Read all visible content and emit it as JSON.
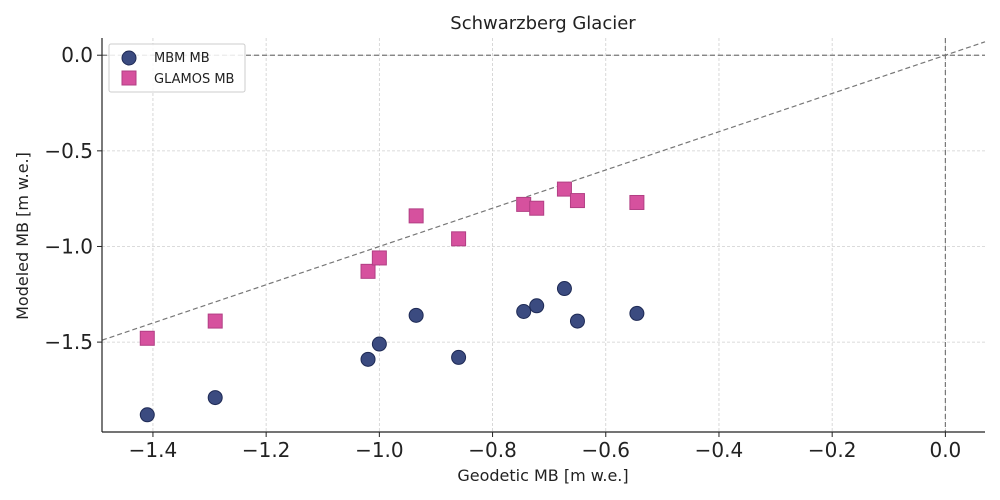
{
  "chart_data": {
    "type": "scatter",
    "title": "Schwarzberg Glacier",
    "xlabel": "Geodetic MB [m w.e.]",
    "ylabel": "Modeled MB [m w.e.]",
    "xlim": [
      -1.49,
      0.07
    ],
    "ylim": [
      -1.97,
      0.09
    ],
    "x_ticks": [
      -1.4,
      -1.2,
      -1.0,
      -0.8,
      -0.6,
      -0.4,
      -0.2,
      0.0
    ],
    "x_tick_labels": [
      "−1.4",
      "−1.2",
      "−1.0",
      "−0.8",
      "−0.6",
      "−0.4",
      "−0.2",
      "0.0"
    ],
    "y_ticks": [
      0.0,
      -0.5,
      -1.0,
      -1.5
    ],
    "y_tick_labels": [
      "0.0",
      "−0.5",
      "−1.0",
      "−1.5"
    ],
    "grid": true,
    "legend_position": "top-left",
    "reference_lines": [
      "y=x",
      "x=0",
      "y=0"
    ],
    "series": [
      {
        "name": "MBM MB",
        "marker": "circle",
        "color": "#3b4b80",
        "points": [
          {
            "x": -1.41,
            "y": -1.88
          },
          {
            "x": -1.29,
            "y": -1.79
          },
          {
            "x": -1.02,
            "y": -1.59
          },
          {
            "x": -1.0,
            "y": -1.51
          },
          {
            "x": -0.935,
            "y": -1.36
          },
          {
            "x": -0.86,
            "y": -1.58
          },
          {
            "x": -0.745,
            "y": -1.34
          },
          {
            "x": -0.722,
            "y": -1.31
          },
          {
            "x": -0.673,
            "y": -1.22
          },
          {
            "x": -0.65,
            "y": -1.39
          },
          {
            "x": -0.545,
            "y": -1.35
          }
        ]
      },
      {
        "name": "GLAMOS MB",
        "marker": "square",
        "color": "#d6519e",
        "points": [
          {
            "x": -1.41,
            "y": -1.48
          },
          {
            "x": -1.29,
            "y": -1.39
          },
          {
            "x": -1.02,
            "y": -1.13
          },
          {
            "x": -1.0,
            "y": -1.06
          },
          {
            "x": -0.935,
            "y": -0.84
          },
          {
            "x": -0.86,
            "y": -0.96
          },
          {
            "x": -0.745,
            "y": -0.78
          },
          {
            "x": -0.722,
            "y": -0.8
          },
          {
            "x": -0.673,
            "y": -0.7
          },
          {
            "x": -0.65,
            "y": -0.76
          },
          {
            "x": -0.545,
            "y": -0.77
          }
        ]
      }
    ]
  }
}
